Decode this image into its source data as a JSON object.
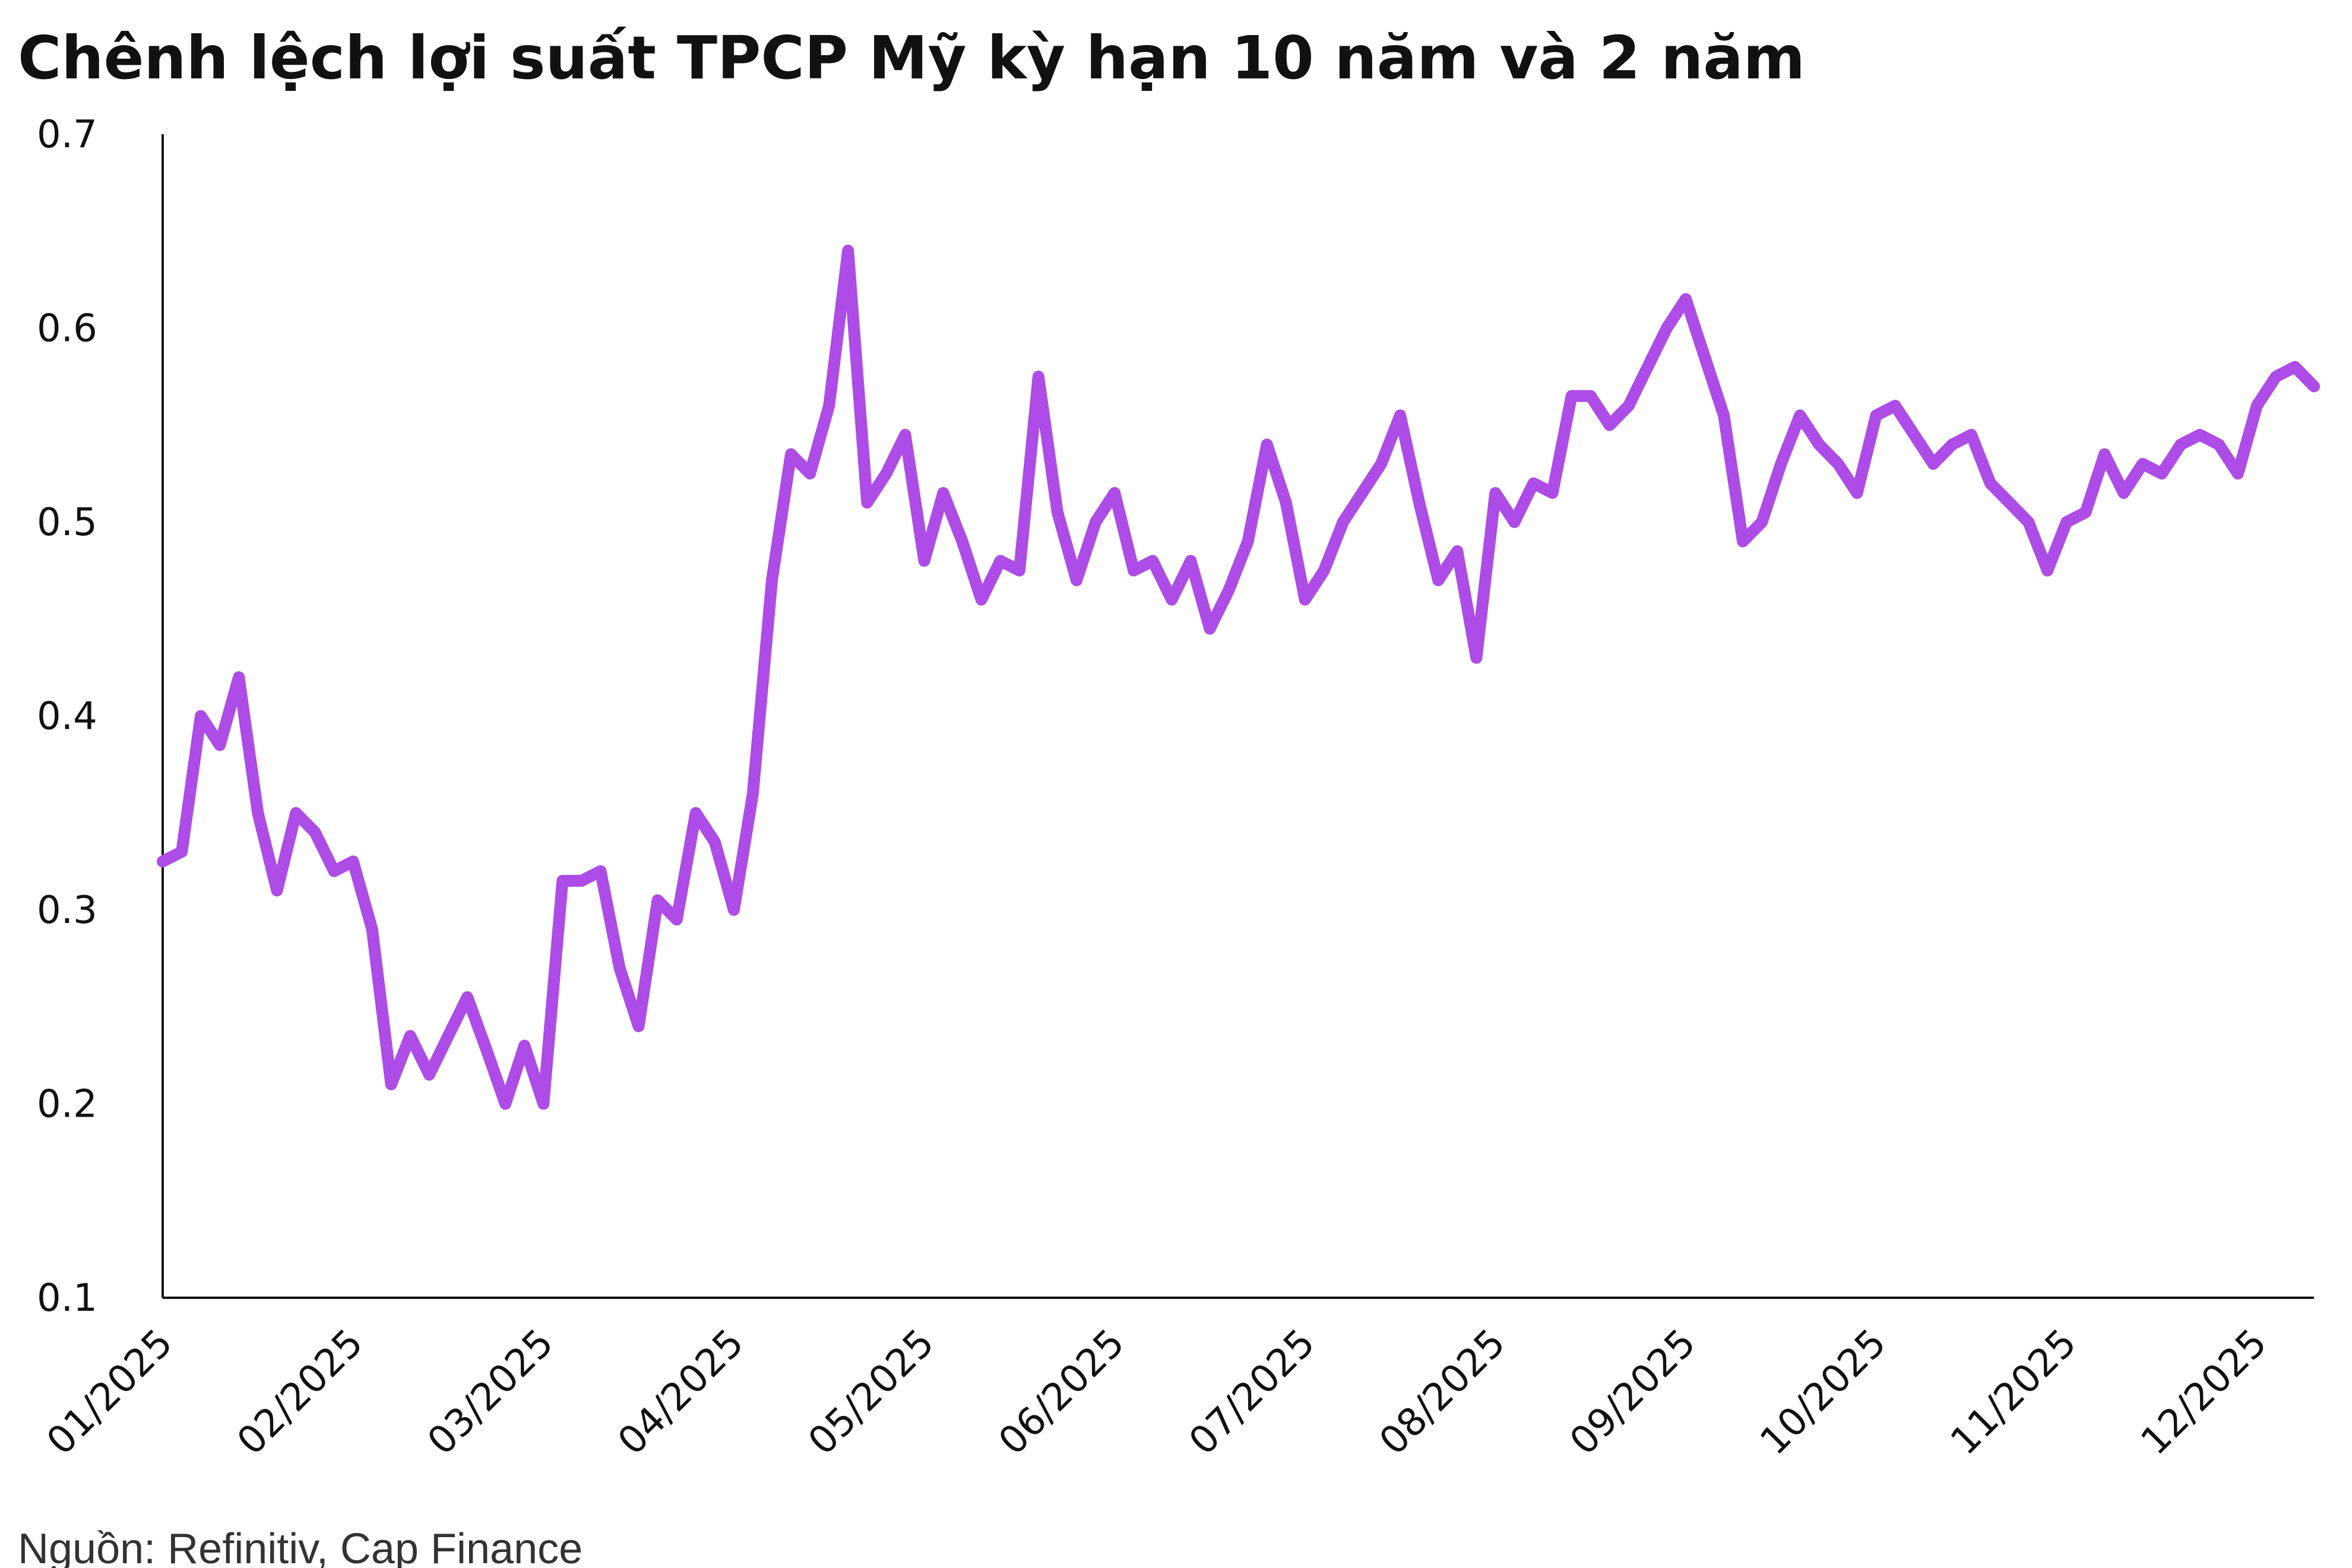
{
  "chart_data": {
    "type": "line",
    "title": "Chênh lệch lợi suất TPCP Mỹ kỳ hạn 10 năm và 2 năm",
    "source": "Nguồn: Refinitiv, Cap Finance",
    "categories": [
      "01/2025",
      null,
      null,
      null,
      null,
      null,
      null,
      null,
      null,
      null,
      "02/2025",
      null,
      null,
      null,
      null,
      null,
      null,
      null,
      null,
      null,
      "03/2025",
      null,
      null,
      null,
      null,
      null,
      null,
      null,
      null,
      null,
      "04/2025",
      null,
      null,
      null,
      null,
      null,
      null,
      null,
      null,
      null,
      "05/2025",
      null,
      null,
      null,
      null,
      null,
      null,
      null,
      null,
      null,
      "06/2025",
      null,
      null,
      null,
      null,
      null,
      null,
      null,
      null,
      null,
      "07/2025",
      null,
      null,
      null,
      null,
      null,
      null,
      null,
      null,
      null,
      "08/2025",
      null,
      null,
      null,
      null,
      null,
      null,
      null,
      null,
      null,
      "09/2025",
      null,
      null,
      null,
      null,
      null,
      null,
      null,
      null,
      null,
      "10/2025",
      null,
      null,
      null,
      null,
      null,
      null,
      null,
      null,
      null,
      "11/2025",
      null,
      null,
      null,
      null,
      null,
      null,
      null,
      null,
      null,
      "12/2025",
      null,
      null,
      null
    ],
    "series": [
      {
        "name": "Chênh lệch",
        "color": "#ad4ce6",
        "values": [
          0.325,
          0.33,
          0.4,
          0.385,
          0.42,
          0.35,
          0.31,
          0.35,
          0.34,
          0.32,
          0.325,
          0.29,
          0.21,
          0.235,
          0.215,
          0.235,
          0.255,
          0.228,
          0.2,
          0.23,
          0.2,
          0.315,
          0.315,
          0.32,
          0.27,
          0.24,
          0.305,
          0.295,
          0.35,
          0.335,
          0.3,
          0.36,
          0.47,
          0.535,
          0.525,
          0.56,
          0.64,
          0.51,
          0.525,
          0.545,
          0.48,
          0.515,
          0.49,
          0.46,
          0.48,
          0.475,
          0.575,
          0.505,
          0.47,
          0.5,
          0.515,
          0.475,
          0.48,
          0.46,
          0.48,
          0.445,
          0.465,
          0.49,
          0.54,
          0.51,
          0.46,
          0.475,
          0.5,
          0.515,
          0.53,
          0.555,
          0.51,
          0.47,
          0.485,
          0.43,
          0.515,
          0.5,
          0.52,
          0.515,
          0.565,
          0.565,
          0.55,
          0.56,
          0.58,
          0.6,
          0.615,
          0.585,
          0.555,
          0.49,
          0.5,
          0.53,
          0.555,
          0.54,
          0.53,
          0.515,
          0.555,
          0.56,
          0.545,
          0.53,
          0.54,
          0.545,
          0.52,
          0.51,
          0.5,
          0.475,
          0.5,
          0.505,
          0.535,
          0.515,
          0.53,
          0.525,
          0.54,
          0.545,
          0.54,
          0.525,
          0.56,
          0.575,
          0.58,
          0.57
        ]
      }
    ],
    "ylim": [
      0.1,
      0.7
    ],
    "yticks": [
      0.1,
      0.2,
      0.3,
      0.4,
      0.5,
      0.6,
      0.7
    ],
    "grid": false
  }
}
